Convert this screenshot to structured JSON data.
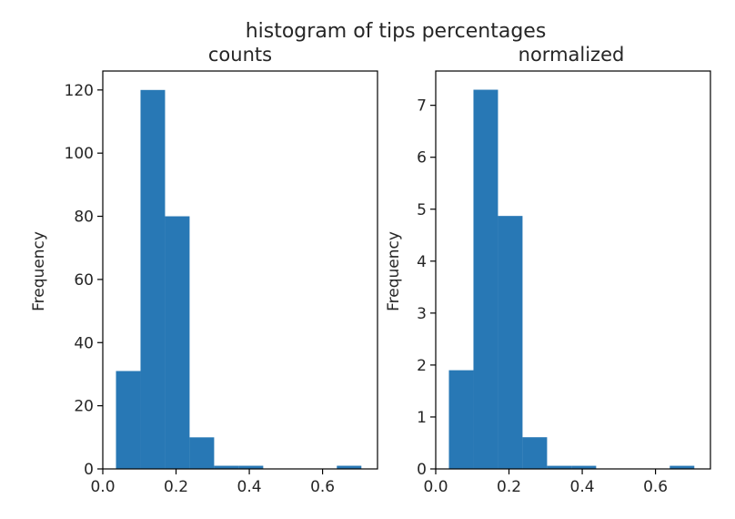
{
  "suptitle": "histogram of tips percentages",
  "chart_data": [
    {
      "type": "bar",
      "title": "counts",
      "xlabel": "",
      "ylabel": "Frequency",
      "bar_color": "#2878b5",
      "xlim": [
        0.0,
        0.75
      ],
      "ylim": [
        0,
        126
      ],
      "xticks": [
        0.0,
        0.2,
        0.4,
        0.6
      ],
      "xtick_labels": [
        "0.0",
        "0.2",
        "0.4",
        "0.6"
      ],
      "yticks": [
        0,
        20,
        40,
        60,
        80,
        100,
        120
      ],
      "ytick_labels": [
        "0",
        "20",
        "40",
        "60",
        "80",
        "100",
        "120"
      ],
      "bin_edges": [
        0.036,
        0.103,
        0.17,
        0.237,
        0.304,
        0.371,
        0.438,
        0.505,
        0.572,
        0.639,
        0.706
      ],
      "values": [
        31,
        120,
        80,
        10,
        1,
        1,
        0,
        0,
        0,
        1
      ]
    },
    {
      "type": "bar",
      "title": "normalized",
      "xlabel": "",
      "ylabel": "Frequency",
      "bar_color": "#2878b5",
      "xlim": [
        0.0,
        0.75
      ],
      "ylim": [
        0,
        7.66
      ],
      "xticks": [
        0.0,
        0.2,
        0.4,
        0.6
      ],
      "xtick_labels": [
        "0.0",
        "0.2",
        "0.4",
        "0.6"
      ],
      "yticks": [
        0,
        1,
        2,
        3,
        4,
        5,
        6,
        7
      ],
      "ytick_labels": [
        "0",
        "1",
        "2",
        "3",
        "4",
        "5",
        "6",
        "7"
      ],
      "bin_edges": [
        0.036,
        0.103,
        0.17,
        0.237,
        0.304,
        0.371,
        0.438,
        0.505,
        0.572,
        0.639,
        0.706
      ],
      "values": [
        1.9,
        7.3,
        4.87,
        0.61,
        0.06,
        0.06,
        0,
        0,
        0,
        0.06
      ]
    }
  ]
}
